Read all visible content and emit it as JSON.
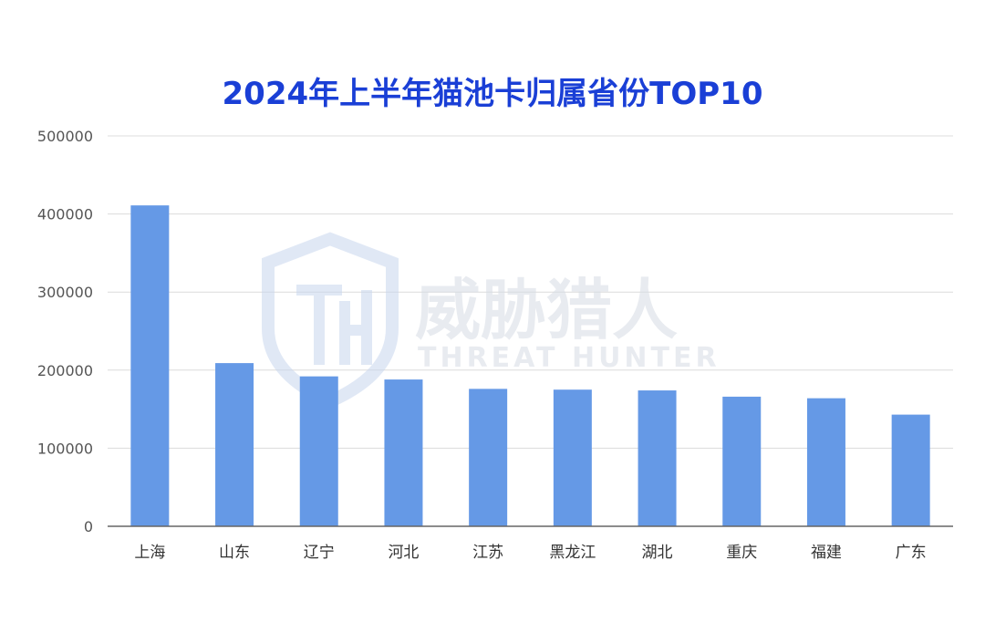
{
  "chart_data": {
    "type": "bar",
    "title": "2024年上半年猫池卡归属省份TOP10",
    "xlabel": "",
    "ylabel": "",
    "ylim": [
      0,
      500000
    ],
    "yticks": [
      0,
      100000,
      200000,
      300000,
      400000,
      500000
    ],
    "ytick_labels": [
      "0",
      "100000",
      "200000",
      "300000",
      "400000",
      "500000"
    ],
    "grid": true,
    "categories": [
      "上海",
      "山东",
      "辽宁",
      "河北",
      "江苏",
      "黑龙江",
      "湖北",
      "重庆",
      "福建",
      "广东"
    ],
    "values": [
      411000,
      209000,
      192000,
      188000,
      176000,
      175000,
      174000,
      166000,
      164000,
      143000
    ],
    "bar_color": "#6599e6"
  },
  "watermark": {
    "cn_text": "威胁猎人",
    "en_text": "THREAT HUNTER",
    "logo_icon": "shield-th-icon"
  }
}
